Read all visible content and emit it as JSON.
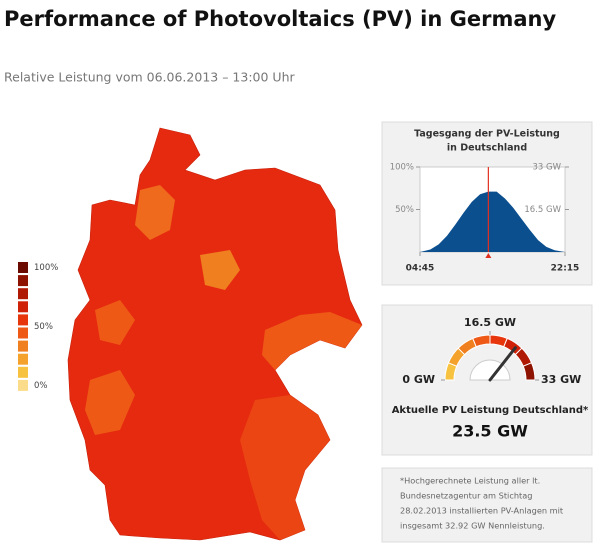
{
  "header": {
    "title": "Performance of Photovoltaics (PV) in Germany",
    "subtitle": "Relative Leistung vom 06.06.2013 – 13:00 Uhr"
  },
  "map_legend": {
    "colors": [
      "#6b0a00",
      "#8e1200",
      "#b01a05",
      "#cf2208",
      "#e8360c",
      "#ee5a16",
      "#f07f1f",
      "#f4a22b",
      "#f7c23f",
      "#fbdc8a"
    ],
    "ylim": [
      0,
      100
    ],
    "ticks": [
      {
        "value": 100,
        "label": "100%"
      },
      {
        "value": 50,
        "label": "50%"
      },
      {
        "value": 0,
        "label": "0%"
      }
    ]
  },
  "daily_chart": {
    "type": "area",
    "title_lines": [
      "Tagesgang der PV-Leistung",
      "in Deutschland"
    ],
    "x": [
      4.75,
      6,
      7,
      8,
      9,
      10,
      11,
      12,
      13,
      14,
      15,
      16,
      17,
      18,
      19,
      20,
      21,
      22.25
    ],
    "values": [
      0,
      3,
      9,
      19,
      32,
      46,
      59,
      68,
      71,
      71,
      63,
      52,
      39,
      26,
      14,
      6,
      2,
      0
    ],
    "color": "#0b4f8f",
    "xlim": [
      4.75,
      22.25
    ],
    "xticks": [
      {
        "value": 4.75,
        "label": "04:45"
      },
      {
        "value": 22.25,
        "label": "22:15"
      }
    ],
    "ylim": [
      0,
      100
    ],
    "yticks": [
      {
        "value": 50,
        "label": "50%"
      },
      {
        "value": 100,
        "label": "100%"
      }
    ],
    "y2lim": [
      0,
      33
    ],
    "y2ticks": [
      {
        "value": 16.5,
        "label": "16.5 GW"
      },
      {
        "value": 33,
        "label": "33 GW"
      }
    ],
    "marker_x": 13,
    "marker_color": "#e03020"
  },
  "gauge": {
    "min": {
      "value": 0,
      "label": "0 GW"
    },
    "mid": {
      "value": 16.5,
      "label": "16.5 GW"
    },
    "max": {
      "value": 33,
      "label": "33 GW"
    },
    "caption": "Aktuelle PV Leistung Deutschland*",
    "value": 23.5,
    "value_label": "23.5 GW"
  },
  "note": {
    "lines": [
      "*Hochgerechnete Leistung aller lt.",
      "Bundesnetzagentur am Stichtag",
      "28.02.2013 installierten PV-Anlagen mit",
      "insgesamt 32.92 GW Nennleistung."
    ]
  }
}
